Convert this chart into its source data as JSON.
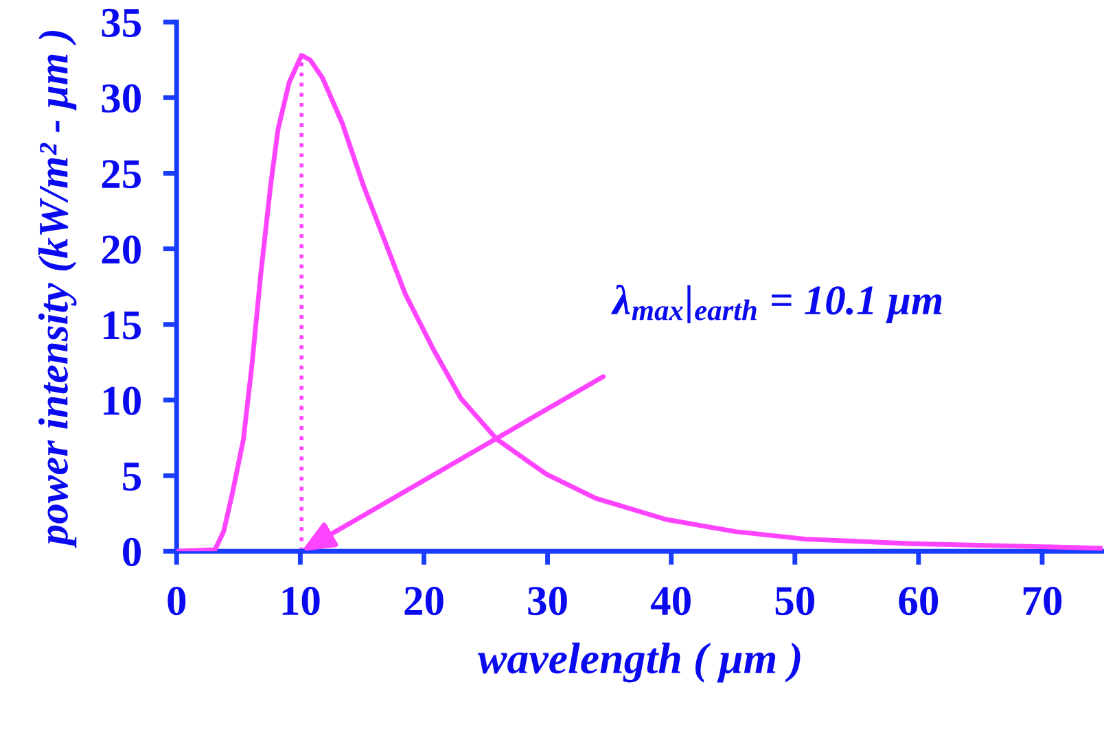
{
  "chart_data": {
    "type": "line",
    "xlabel": "wavelength ( μm )",
    "ylabel": "power intensity (kW/m² - μm )",
    "x": [
      0,
      3.1,
      3.8,
      4.5,
      5.4,
      6.1,
      6.8,
      7.6,
      8.2,
      9.1,
      10.1,
      10.8,
      11.8,
      13.4,
      15.1,
      16.8,
      18.5,
      20.8,
      23.0,
      25.9,
      29.9,
      33.9,
      39.6,
      45.2,
      50.9,
      59.5,
      70,
      74.7
    ],
    "series": [
      {
        "color": "#ff44ff",
        "values": [
          0,
          0.1,
          1.3,
          3.8,
          7.4,
          12.4,
          18.3,
          24.2,
          27.9,
          31.0,
          32.8,
          32.5,
          31.3,
          28.3,
          24.2,
          20.6,
          17.0,
          13.3,
          10.1,
          7.4,
          5.1,
          3.5,
          2.1,
          1.3,
          0.8,
          0.5,
          0.3,
          0.2
        ]
      }
    ],
    "xlim": [
      0,
      75
    ],
    "ylim": [
      0,
      35
    ],
    "xticks": [
      0,
      10,
      20,
      30,
      40,
      50,
      60,
      70
    ],
    "yticks": [
      0,
      5,
      10,
      15,
      20,
      25,
      30,
      35
    ],
    "grid": false,
    "legend": false,
    "marker": "none",
    "line_style": "solid",
    "ref_lines": [
      {
        "axis": "x",
        "value": 10.1,
        "color": "#ff44ff",
        "line_style": "dotted"
      }
    ],
    "annotations": [
      "λ$_{max}$|$_{earth}$ = 10.1 μm"
    ]
  }
}
